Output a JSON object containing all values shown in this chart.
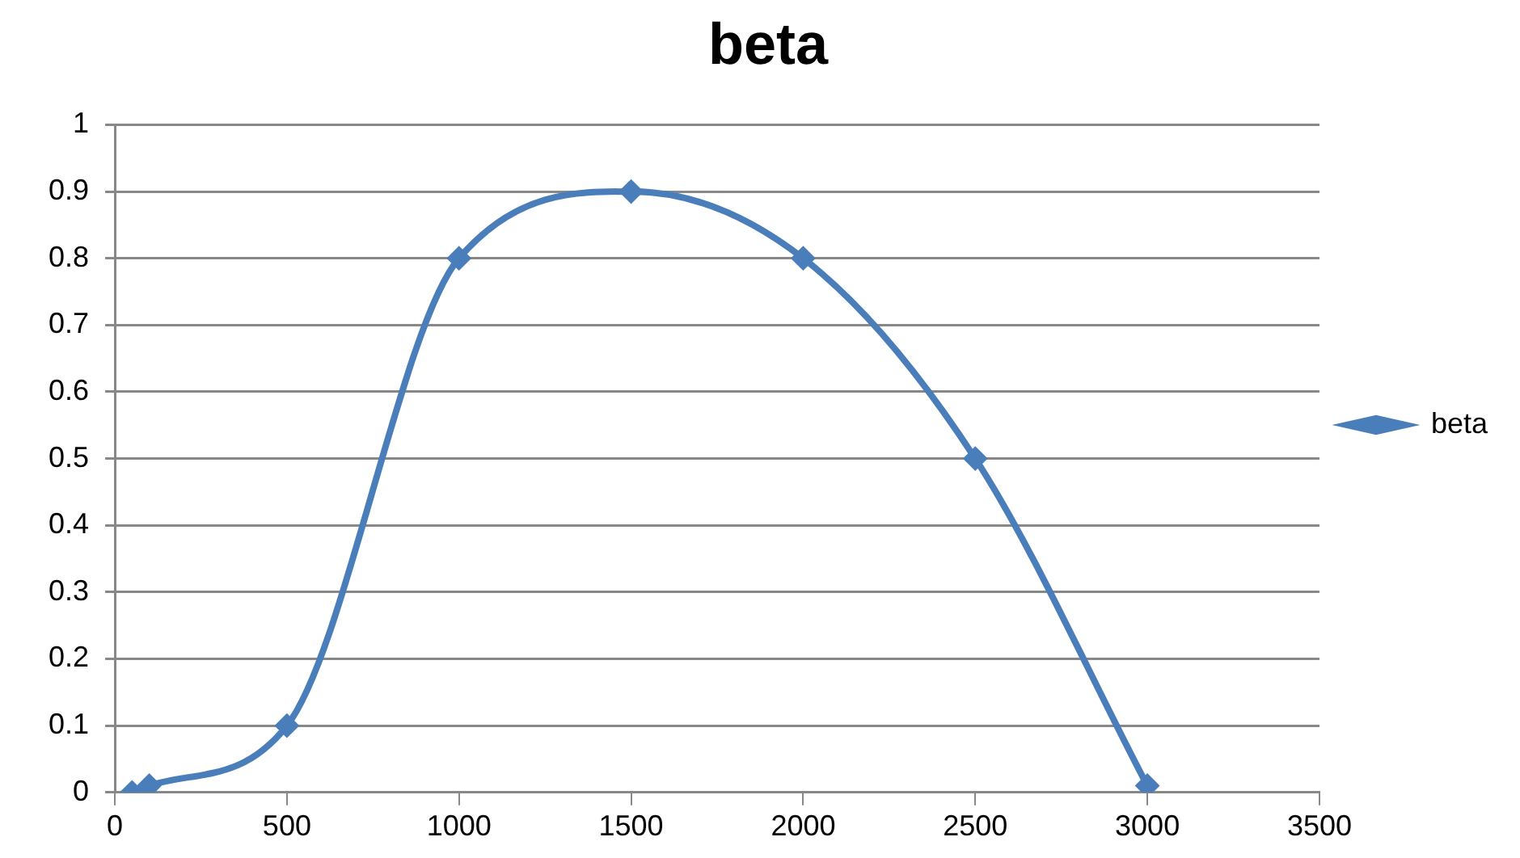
{
  "chart_data": {
    "type": "line",
    "title": "beta",
    "x": [
      50,
      100,
      500,
      1000,
      1500,
      2000,
      2500,
      3000
    ],
    "series": [
      {
        "name": "beta",
        "color": "#4a7ebb",
        "values": [
          0,
          0.01,
          0.1,
          0.8,
          0.9,
          0.8,
          0.5,
          0.01
        ]
      }
    ],
    "xlim": [
      0,
      3500
    ],
    "xticks": [
      0,
      500,
      1000,
      1500,
      2000,
      2500,
      3000,
      3500
    ],
    "ylim": [
      0,
      1
    ],
    "yticks": [
      0,
      0.1,
      0.2,
      0.3,
      0.4,
      0.5,
      0.6,
      0.7,
      0.8,
      0.9,
      1
    ],
    "grid": "y",
    "legend": "right",
    "marker": "diamond",
    "line_style": "solid"
  }
}
